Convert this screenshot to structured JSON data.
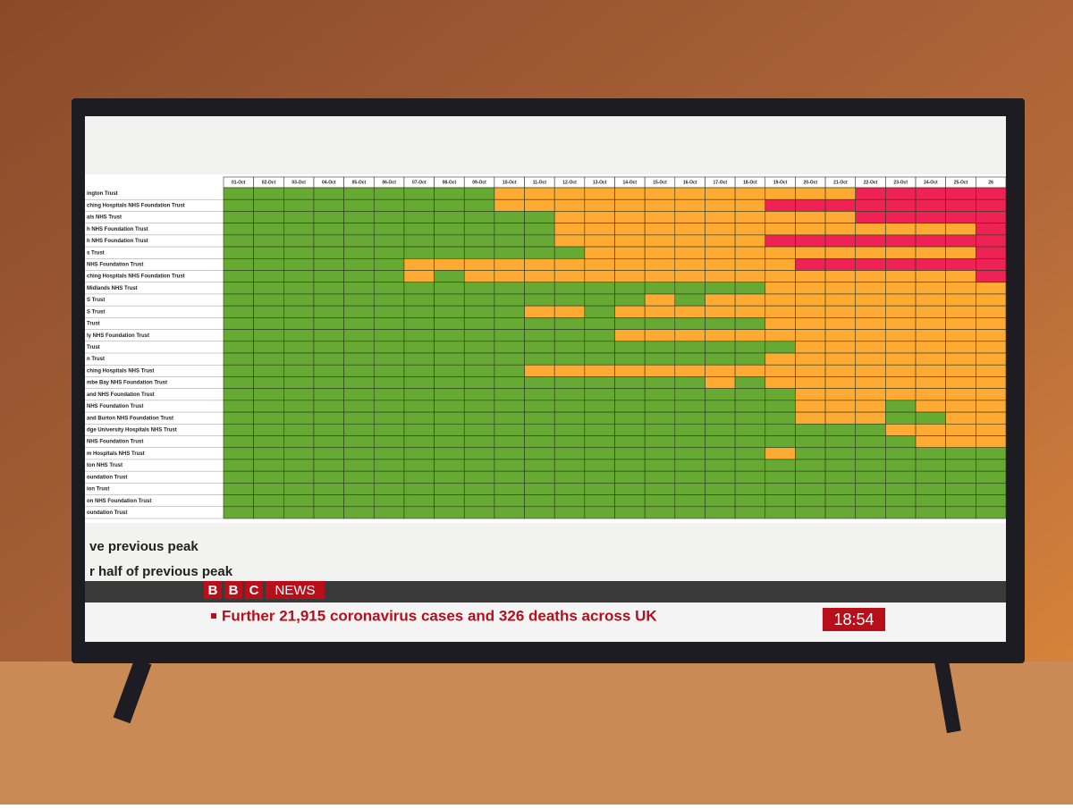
{
  "screen": {
    "columns": [
      "01-Oct",
      "02-Oct",
      "03-Oct",
      "04-Oct",
      "05-Oct",
      "06-Oct",
      "07-Oct",
      "08-Oct",
      "09-Oct",
      "10-Oct",
      "11-Oct",
      "12-Oct",
      "13-Oct",
      "14-Oct",
      "15-Oct",
      "16-Oct",
      "17-Oct",
      "18-Oct",
      "19-Oct",
      "20-Oct",
      "21-Oct",
      "22-Oct",
      "23-Oct",
      "24-Oct",
      "25-Oct",
      "26"
    ],
    "rows": [
      {
        "label": "ington Trust",
        "colors": [
          "#6a3",
          "#6a3",
          "#6a3",
          "#6a3",
          "#6a3",
          "#6a3",
          "#6a3",
          "#6a3",
          "#6a3",
          "#fa3",
          "#fa3",
          "#fa3",
          "#fa3",
          "#fa3",
          "#fa3",
          "#fa3",
          "#fa3",
          "#fa3",
          "#fa3",
          "#fa3",
          "#fa3",
          "#e25",
          "#e25",
          "#e25",
          "#e25",
          "#e25"
        ]
      },
      {
        "label": "ching Hospitals NHS Foundation Trust",
        "colors": [
          "#6a3",
          "#6a3",
          "#6a3",
          "#6a3",
          "#6a3",
          "#6a3",
          "#6a3",
          "#6a3",
          "#6a3",
          "#fa3",
          "#fa3",
          "#fa3",
          "#fa3",
          "#fa3",
          "#fa3",
          "#fa3",
          "#fa3",
          "#fa3",
          "#e25",
          "#e25",
          "#e25",
          "#e25",
          "#e25",
          "#e25",
          "#e25",
          "#e25"
        ]
      },
      {
        "label": "als NHS Trust",
        "colors": [
          "#6a3",
          "#6a3",
          "#6a3",
          "#6a3",
          "#6a3",
          "#6a3",
          "#6a3",
          "#6a3",
          "#6a3",
          "#6a3",
          "#6a3",
          "#fa3",
          "#fa3",
          "#fa3",
          "#fa3",
          "#fa3",
          "#fa3",
          "#fa3",
          "#fa3",
          "#fa3",
          "#fa3",
          "#e25",
          "#e25",
          "#e25",
          "#e25",
          "#e25"
        ]
      },
      {
        "label": "h NHS Foundation Trust",
        "colors": [
          "#6a3",
          "#6a3",
          "#6a3",
          "#6a3",
          "#6a3",
          "#6a3",
          "#6a3",
          "#6a3",
          "#6a3",
          "#6a3",
          "#6a3",
          "#fa3",
          "#fa3",
          "#fa3",
          "#fa3",
          "#fa3",
          "#fa3",
          "#fa3",
          "#fa3",
          "#fa3",
          "#fa3",
          "#fa3",
          "#fa3",
          "#fa3",
          "#fa3",
          "#e25"
        ]
      },
      {
        "label": "h NHS Foundation Trust",
        "colors": [
          "#6a3",
          "#6a3",
          "#6a3",
          "#6a3",
          "#6a3",
          "#6a3",
          "#6a3",
          "#6a3",
          "#6a3",
          "#6a3",
          "#6a3",
          "#fa3",
          "#fa3",
          "#fa3",
          "#fa3",
          "#fa3",
          "#fa3",
          "#fa3",
          "#e25",
          "#e25",
          "#e25",
          "#e25",
          "#e25",
          "#e25",
          "#e25",
          "#e25"
        ]
      },
      {
        "label": "s Trust",
        "colors": [
          "#6a3",
          "#6a3",
          "#6a3",
          "#6a3",
          "#6a3",
          "#6a3",
          "#6a3",
          "#6a3",
          "#6a3",
          "#6a3",
          "#6a3",
          "#6a3",
          "#fa3",
          "#fa3",
          "#fa3",
          "#fa3",
          "#fa3",
          "#fa3",
          "#fa3",
          "#fa3",
          "#fa3",
          "#fa3",
          "#fa3",
          "#fa3",
          "#fa3",
          "#e25"
        ]
      },
      {
        "label": "NHS Foundation Trust",
        "colors": [
          "#6a3",
          "#6a3",
          "#6a3",
          "#6a3",
          "#6a3",
          "#6a3",
          "#fa3",
          "#fa3",
          "#fa3",
          "#fa3",
          "#fa3",
          "#fa3",
          "#fa3",
          "#fa3",
          "#fa3",
          "#fa3",
          "#fa3",
          "#fa3",
          "#fa3",
          "#e25",
          "#e25",
          "#e25",
          "#e25",
          "#e25",
          "#e25",
          "#e25"
        ]
      },
      {
        "label": "ching Hospitals NHS Foundation Trust",
        "colors": [
          "#6a3",
          "#6a3",
          "#6a3",
          "#6a3",
          "#6a3",
          "#6a3",
          "#fa3",
          "#6a3",
          "#fa3",
          "#fa3",
          "#fa3",
          "#fa3",
          "#fa3",
          "#fa3",
          "#fa3",
          "#fa3",
          "#fa3",
          "#fa3",
          "#fa3",
          "#fa3",
          "#fa3",
          "#fa3",
          "#fa3",
          "#fa3",
          "#fa3",
          "#e25"
        ]
      },
      {
        "label": "Midlands NHS Trust",
        "colors": [
          "#6a3",
          "#6a3",
          "#6a3",
          "#6a3",
          "#6a3",
          "#6a3",
          "#6a3",
          "#6a3",
          "#6a3",
          "#6a3",
          "#6a3",
          "#6a3",
          "#6a3",
          "#6a3",
          "#6a3",
          "#6a3",
          "#6a3",
          "#6a3",
          "#fa3",
          "#fa3",
          "#fa3",
          "#fa3",
          "#fa3",
          "#fa3",
          "#fa3",
          "#fa3"
        ]
      },
      {
        "label": "S Trust",
        "colors": [
          "#6a3",
          "#6a3",
          "#6a3",
          "#6a3",
          "#6a3",
          "#6a3",
          "#6a3",
          "#6a3",
          "#6a3",
          "#6a3",
          "#6a3",
          "#6a3",
          "#6a3",
          "#6a3",
          "#fa3",
          "#6a3",
          "#fa3",
          "#fa3",
          "#fa3",
          "#fa3",
          "#fa3",
          "#fa3",
          "#fa3",
          "#fa3",
          "#fa3",
          "#fa3"
        ]
      },
      {
        "label": "S Trust",
        "colors": [
          "#6a3",
          "#6a3",
          "#6a3",
          "#6a3",
          "#6a3",
          "#6a3",
          "#6a3",
          "#6a3",
          "#6a3",
          "#6a3",
          "#fa3",
          "#fa3",
          "#6a3",
          "#fa3",
          "#fa3",
          "#fa3",
          "#fa3",
          "#fa3",
          "#fa3",
          "#fa3",
          "#fa3",
          "#fa3",
          "#fa3",
          "#fa3",
          "#fa3",
          "#fa3"
        ]
      },
      {
        "label": "Trust",
        "colors": [
          "#6a3",
          "#6a3",
          "#6a3",
          "#6a3",
          "#6a3",
          "#6a3",
          "#6a3",
          "#6a3",
          "#6a3",
          "#6a3",
          "#6a3",
          "#6a3",
          "#6a3",
          "#6a3",
          "#6a3",
          "#6a3",
          "#6a3",
          "#6a3",
          "#fa3",
          "#fa3",
          "#fa3",
          "#fa3",
          "#fa3",
          "#fa3",
          "#fa3",
          "#fa3"
        ]
      },
      {
        "label": "ly NHS Foundation Trust",
        "colors": [
          "#6a3",
          "#6a3",
          "#6a3",
          "#6a3",
          "#6a3",
          "#6a3",
          "#6a3",
          "#6a3",
          "#6a3",
          "#6a3",
          "#6a3",
          "#6a3",
          "#6a3",
          "#fa3",
          "#fa3",
          "#fa3",
          "#fa3",
          "#fa3",
          "#fa3",
          "#fa3",
          "#fa3",
          "#fa3",
          "#fa3",
          "#fa3",
          "#fa3",
          "#fa3"
        ]
      },
      {
        "label": "Trust",
        "colors": [
          "#6a3",
          "#6a3",
          "#6a3",
          "#6a3",
          "#6a3",
          "#6a3",
          "#6a3",
          "#6a3",
          "#6a3",
          "#6a3",
          "#6a3",
          "#6a3",
          "#6a3",
          "#6a3",
          "#6a3",
          "#6a3",
          "#6a3",
          "#6a3",
          "#6a3",
          "#fa3",
          "#fa3",
          "#fa3",
          "#fa3",
          "#fa3",
          "#fa3",
          "#fa3"
        ]
      },
      {
        "label": "n Trust",
        "colors": [
          "#6a3",
          "#6a3",
          "#6a3",
          "#6a3",
          "#6a3",
          "#6a3",
          "#6a3",
          "#6a3",
          "#6a3",
          "#6a3",
          "#6a3",
          "#6a3",
          "#6a3",
          "#6a3",
          "#6a3",
          "#6a3",
          "#6a3",
          "#6a3",
          "#fa3",
          "#fa3",
          "#fa3",
          "#fa3",
          "#fa3",
          "#fa3",
          "#fa3",
          "#fa3"
        ]
      },
      {
        "label": "ching Hospitals NHS Trust",
        "colors": [
          "#6a3",
          "#6a3",
          "#6a3",
          "#6a3",
          "#6a3",
          "#6a3",
          "#6a3",
          "#6a3",
          "#6a3",
          "#6a3",
          "#fa3",
          "#fa3",
          "#fa3",
          "#fa3",
          "#fa3",
          "#fa3",
          "#fa3",
          "#fa3",
          "#fa3",
          "#fa3",
          "#fa3",
          "#fa3",
          "#fa3",
          "#fa3",
          "#fa3",
          "#fa3"
        ]
      },
      {
        "label": "mbe Bay NHS Foundation Trust",
        "colors": [
          "#6a3",
          "#6a3",
          "#6a3",
          "#6a3",
          "#6a3",
          "#6a3",
          "#6a3",
          "#6a3",
          "#6a3",
          "#6a3",
          "#6a3",
          "#6a3",
          "#6a3",
          "#6a3",
          "#6a3",
          "#6a3",
          "#fa3",
          "#6a3",
          "#fa3",
          "#fa3",
          "#fa3",
          "#fa3",
          "#fa3",
          "#fa3",
          "#fa3",
          "#fa3"
        ]
      },
      {
        "label": "and NHS Foundation Trust",
        "colors": [
          "#6a3",
          "#6a3",
          "#6a3",
          "#6a3",
          "#6a3",
          "#6a3",
          "#6a3",
          "#6a3",
          "#6a3",
          "#6a3",
          "#6a3",
          "#6a3",
          "#6a3",
          "#6a3",
          "#6a3",
          "#6a3",
          "#6a3",
          "#6a3",
          "#6a3",
          "#fa3",
          "#fa3",
          "#fa3",
          "#fa3",
          "#fa3",
          "#fa3",
          "#fa3"
        ]
      },
      {
        "label": "NHS Foundation Trust",
        "colors": [
          "#6a3",
          "#6a3",
          "#6a3",
          "#6a3",
          "#6a3",
          "#6a3",
          "#6a3",
          "#6a3",
          "#6a3",
          "#6a3",
          "#6a3",
          "#6a3",
          "#6a3",
          "#6a3",
          "#6a3",
          "#6a3",
          "#6a3",
          "#6a3",
          "#6a3",
          "#fa3",
          "#fa3",
          "#fa3",
          "#6a3",
          "#fa3",
          "#fa3",
          "#fa3"
        ]
      },
      {
        "label": "and Burton NHS Foundation Trust",
        "colors": [
          "#6a3",
          "#6a3",
          "#6a3",
          "#6a3",
          "#6a3",
          "#6a3",
          "#6a3",
          "#6a3",
          "#6a3",
          "#6a3",
          "#6a3",
          "#6a3",
          "#6a3",
          "#6a3",
          "#6a3",
          "#6a3",
          "#6a3",
          "#6a3",
          "#6a3",
          "#fa3",
          "#fa3",
          "#fa3",
          "#6a3",
          "#6a3",
          "#fa3",
          "#fa3"
        ]
      },
      {
        "label": "dge University Hospitals NHS Trust",
        "colors": [
          "#6a3",
          "#6a3",
          "#6a3",
          "#6a3",
          "#6a3",
          "#6a3",
          "#6a3",
          "#6a3",
          "#6a3",
          "#6a3",
          "#6a3",
          "#6a3",
          "#6a3",
          "#6a3",
          "#6a3",
          "#6a3",
          "#6a3",
          "#6a3",
          "#6a3",
          "#6a3",
          "#6a3",
          "#6a3",
          "#fa3",
          "#fa3",
          "#fa3",
          "#fa3"
        ]
      },
      {
        "label": "NHS Foundation Trust",
        "colors": [
          "#6a3",
          "#6a3",
          "#6a3",
          "#6a3",
          "#6a3",
          "#6a3",
          "#6a3",
          "#6a3",
          "#6a3",
          "#6a3",
          "#6a3",
          "#6a3",
          "#6a3",
          "#6a3",
          "#6a3",
          "#6a3",
          "#6a3",
          "#6a3",
          "#6a3",
          "#6a3",
          "#6a3",
          "#6a3",
          "#6a3",
          "#fa3",
          "#fa3",
          "#fa3"
        ]
      },
      {
        "label": "m Hospitals NHS Trust",
        "colors": [
          "#6a3",
          "#6a3",
          "#6a3",
          "#6a3",
          "#6a3",
          "#6a3",
          "#6a3",
          "#6a3",
          "#6a3",
          "#6a3",
          "#6a3",
          "#6a3",
          "#6a3",
          "#6a3",
          "#6a3",
          "#6a3",
          "#6a3",
          "#6a3",
          "#fa3",
          "#6a3",
          "#6a3",
          "#6a3",
          "#6a3",
          "#6a3",
          "#6a3",
          "#6a3"
        ]
      },
      {
        "label": "ton NHS Trust",
        "colors": [
          "#6a3",
          "#6a3",
          "#6a3",
          "#6a3",
          "#6a3",
          "#6a3",
          "#6a3",
          "#6a3",
          "#6a3",
          "#6a3",
          "#6a3",
          "#6a3",
          "#6a3",
          "#6a3",
          "#6a3",
          "#6a3",
          "#6a3",
          "#6a3",
          "#6a3",
          "#6a3",
          "#6a3",
          "#6a3",
          "#6a3",
          "#6a3",
          "#6a3",
          "#6a3"
        ]
      },
      {
        "label": "oundation Trust",
        "colors": [
          "#6a3",
          "#6a3",
          "#6a3",
          "#6a3",
          "#6a3",
          "#6a3",
          "#6a3",
          "#6a3",
          "#6a3",
          "#6a3",
          "#6a3",
          "#6a3",
          "#6a3",
          "#6a3",
          "#6a3",
          "#6a3",
          "#6a3",
          "#6a3",
          "#6a3",
          "#6a3",
          "#6a3",
          "#6a3",
          "#6a3",
          "#6a3",
          "#6a3",
          "#6a3"
        ]
      },
      {
        "label": "ion Trust",
        "colors": [
          "#6a3",
          "#6a3",
          "#6a3",
          "#6a3",
          "#6a3",
          "#6a3",
          "#6a3",
          "#6a3",
          "#6a3",
          "#6a3",
          "#6a3",
          "#6a3",
          "#6a3",
          "#6a3",
          "#6a3",
          "#6a3",
          "#6a3",
          "#6a3",
          "#6a3",
          "#6a3",
          "#6a3",
          "#6a3",
          "#6a3",
          "#6a3",
          "#6a3",
          "#6a3"
        ]
      },
      {
        "label": "on NHS Foundation Trust",
        "colors": [
          "#6a3",
          "#6a3",
          "#6a3",
          "#6a3",
          "#6a3",
          "#6a3",
          "#6a3",
          "#6a3",
          "#6a3",
          "#6a3",
          "#6a3",
          "#6a3",
          "#6a3",
          "#6a3",
          "#6a3",
          "#6a3",
          "#6a3",
          "#6a3",
          "#6a3",
          "#6a3",
          "#6a3",
          "#6a3",
          "#6a3",
          "#6a3",
          "#6a3",
          "#6a3"
        ]
      },
      {
        "label": "oundation Trust",
        "colors": [
          "#6a3",
          "#6a3",
          "#6a3",
          "#6a3",
          "#6a3",
          "#6a3",
          "#6a3",
          "#6a3",
          "#6a3",
          "#6a3",
          "#6a3",
          "#6a3",
          "#6a3",
          "#6a3",
          "#6a3",
          "#6a3",
          "#6a3",
          "#6a3",
          "#6a3",
          "#6a3",
          "#6a3",
          "#6a3",
          "#6a3",
          "#6a3",
          "#6a3",
          "#6a3"
        ]
      }
    ],
    "legend": [
      "ve previous peak",
      "r half of previous peak"
    ],
    "banner": {
      "brand": [
        "B",
        "B",
        "C"
      ],
      "news": "NEWS",
      "ticker": "Further 21,915 coronavirus cases and 326 deaths across UK",
      "clock": "18:54"
    }
  }
}
